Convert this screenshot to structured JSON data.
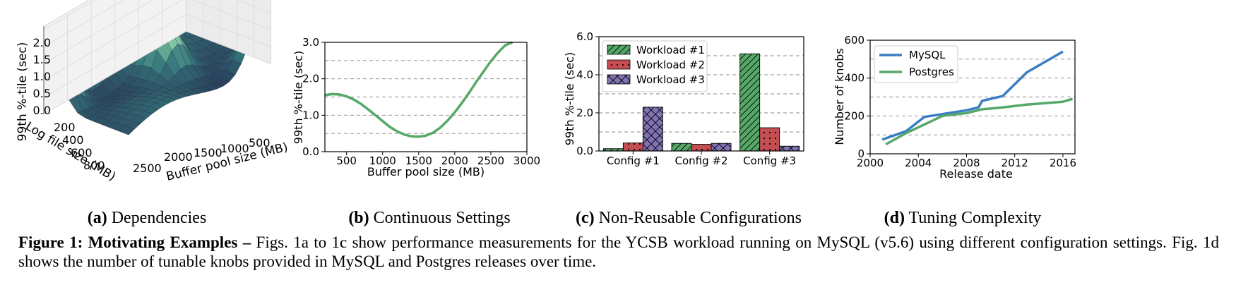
{
  "panels": {
    "a": {
      "caption_label": "(a)",
      "caption_text": "Dependencies",
      "zlabel": "99th %-tile (sec)",
      "zticks": [
        "0.0",
        "0.5",
        "1.0",
        "1.5",
        "2.0"
      ],
      "ylabel": "Log file size (MB)",
      "yticks": [
        "200",
        "400",
        "600",
        "800"
      ],
      "xlabel": "Buffer pool size (MB)",
      "xticks": [
        "2500",
        "2000",
        "1500",
        "1000",
        "500"
      ]
    },
    "b": {
      "caption_label": "(b)",
      "caption_text": "Continuous Settings",
      "ylabel": "99th %-tile (sec)",
      "xlabel": "Buffer pool size (MB)",
      "xticks": [
        "500",
        "1000",
        "1500",
        "2000",
        "2500",
        "3000"
      ],
      "yticks": [
        "0.0",
        "1.0",
        "2.0",
        "3.0"
      ]
    },
    "c": {
      "caption_label": "(c)",
      "caption_text": "Non-Reusable Configurations",
      "ylabel": "99th %-tile (sec)",
      "yticks": [
        "0.0",
        "2.0",
        "4.0",
        "6.0"
      ]
    },
    "d": {
      "caption_label": "(d)",
      "caption_text": "Tuning Complexity",
      "ylabel": "Number of knobs",
      "xlabel": "Release date",
      "xticks": [
        "2000",
        "2004",
        "2008",
        "2012",
        "2016"
      ],
      "yticks": [
        "0",
        "200",
        "400",
        "600"
      ]
    }
  },
  "figure_caption": {
    "bold": "Figure 1: Motivating Examples –",
    "text": " Figs. 1a to 1c show performance measurements for the YCSB workload running on MySQL (v5.6) using different configuration settings. Fig. 1d shows the number of tunable knobs provided in MySQL and Postgres releases over time."
  },
  "colors": {
    "green": "#55a868",
    "red": "#c44e52",
    "purple": "#8172b2",
    "blue": "#3b7dc4"
  },
  "chart_data": [
    {
      "type": "surface",
      "title": "",
      "xlabel": "Buffer pool size (MB)",
      "ylabel": "Log file size (MB)",
      "zlabel": "99th %-tile (sec)",
      "zlim": [
        0,
        2.0
      ]
    },
    {
      "type": "line",
      "xlabel": "Buffer pool size (MB)",
      "ylabel": "99th %-tile (sec)",
      "xlim": [
        200,
        3000
      ],
      "ylim": [
        0,
        3.0
      ],
      "series": [
        {
          "x": [
            200,
            300,
            400,
            500,
            600,
            700,
            800,
            900,
            1000,
            1100,
            1200,
            1300,
            1400,
            1500,
            1600,
            1700,
            1800,
            1900,
            2000,
            2100,
            2200,
            2300,
            2400,
            2500,
            2600,
            2700,
            2800
          ],
          "values": [
            1.55,
            1.58,
            1.57,
            1.52,
            1.43,
            1.31,
            1.16,
            1.0,
            0.84,
            0.68,
            0.56,
            0.47,
            0.42,
            0.41,
            0.44,
            0.52,
            0.66,
            0.85,
            1.08,
            1.34,
            1.62,
            1.92,
            2.2,
            2.48,
            2.72,
            2.92,
            3.05
          ]
        }
      ],
      "grid": true
    },
    {
      "type": "bar",
      "categories": [
        "Config #1",
        "Config #2",
        "Config #3"
      ],
      "ylabel": "99th %-tile (sec)",
      "ylim": [
        0,
        6.0
      ],
      "series": [
        {
          "name": "Workload #1",
          "values": [
            0.12,
            0.4,
            5.1
          ]
        },
        {
          "name": "Workload #2",
          "values": [
            0.42,
            0.35,
            1.22
          ]
        },
        {
          "name": "Workload #3",
          "values": [
            2.3,
            0.4,
            0.25
          ]
        }
      ],
      "legend": "top-left",
      "grid": true
    },
    {
      "type": "line",
      "xlabel": "Release date",
      "ylabel": "Number of knobs",
      "xlim": [
        2000,
        2017
      ],
      "ylim": [
        0,
        600
      ],
      "series": [
        {
          "name": "MySQL",
          "x": [
            2001,
            2003,
            2004.5,
            2006,
            2008,
            2009,
            2009.3,
            2011,
            2013,
            2016
          ],
          "values": [
            75,
            120,
            195,
            210,
            230,
            245,
            280,
            305,
            430,
            540
          ]
        },
        {
          "name": "Postgres",
          "x": [
            2001.3,
            2003,
            2005,
            2006,
            2008,
            2009.3,
            2011,
            2013,
            2016,
            2016.8
          ],
          "values": [
            50,
            110,
            170,
            200,
            215,
            235,
            245,
            260,
            275,
            290
          ]
        }
      ],
      "legend": "top-left",
      "grid": true
    }
  ]
}
